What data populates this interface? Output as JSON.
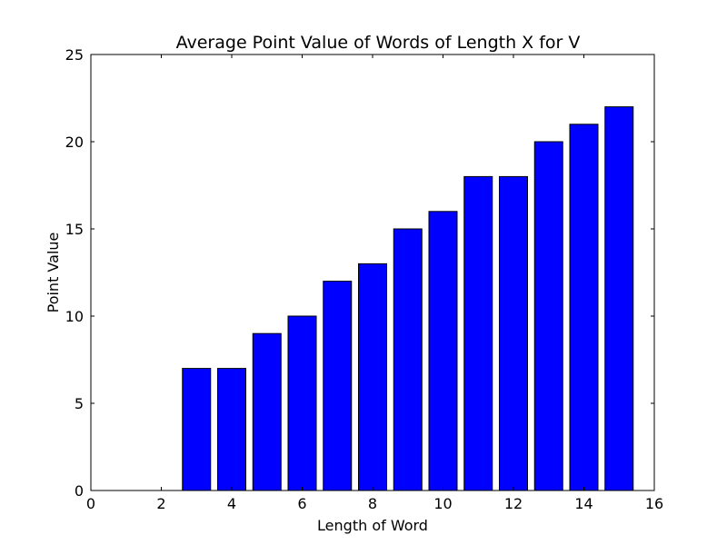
{
  "chart_data": {
    "type": "bar",
    "title": "Average Point Value of Words of Length X for V",
    "xlabel": "Length of Word",
    "ylabel": "Point Value",
    "x": [
      2,
      3,
      4,
      5,
      6,
      7,
      8,
      9,
      10,
      11,
      12,
      13,
      14,
      15
    ],
    "values": [
      0,
      7,
      7,
      9,
      10,
      12,
      13,
      15,
      16,
      18,
      18,
      20,
      21,
      22
    ],
    "bar_width": 0.8,
    "xlim": [
      0,
      16
    ],
    "ylim": [
      0,
      25
    ],
    "xticks": [
      0,
      2,
      4,
      6,
      8,
      10,
      12,
      14,
      16
    ],
    "yticks": [
      0,
      5,
      10,
      15,
      20,
      25
    ],
    "bar_color": "#0000ff",
    "grid": false
  }
}
